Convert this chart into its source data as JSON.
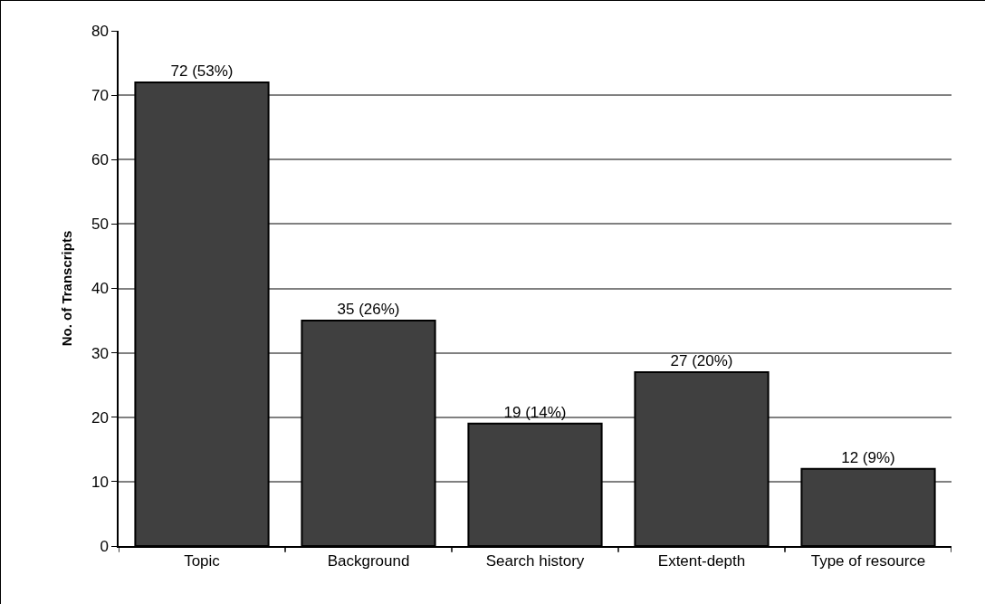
{
  "chart_data": {
    "type": "bar",
    "ylabel": "No. of Transcripts",
    "categories": [
      "Topic",
      "Background",
      "Search history",
      "Extent-depth",
      "Type of resource"
    ],
    "values": [
      72,
      35,
      19,
      27,
      12
    ],
    "value_labels": [
      "72 (53%)",
      "35 (26%)",
      "19 (14%)",
      "27 (20%)",
      "12 (9%)"
    ],
    "color": "#404040",
    "ylim": [
      0,
      80
    ],
    "yticks": [
      0,
      10,
      20,
      30,
      40,
      50,
      60,
      70,
      80
    ],
    "grid": "y"
  }
}
